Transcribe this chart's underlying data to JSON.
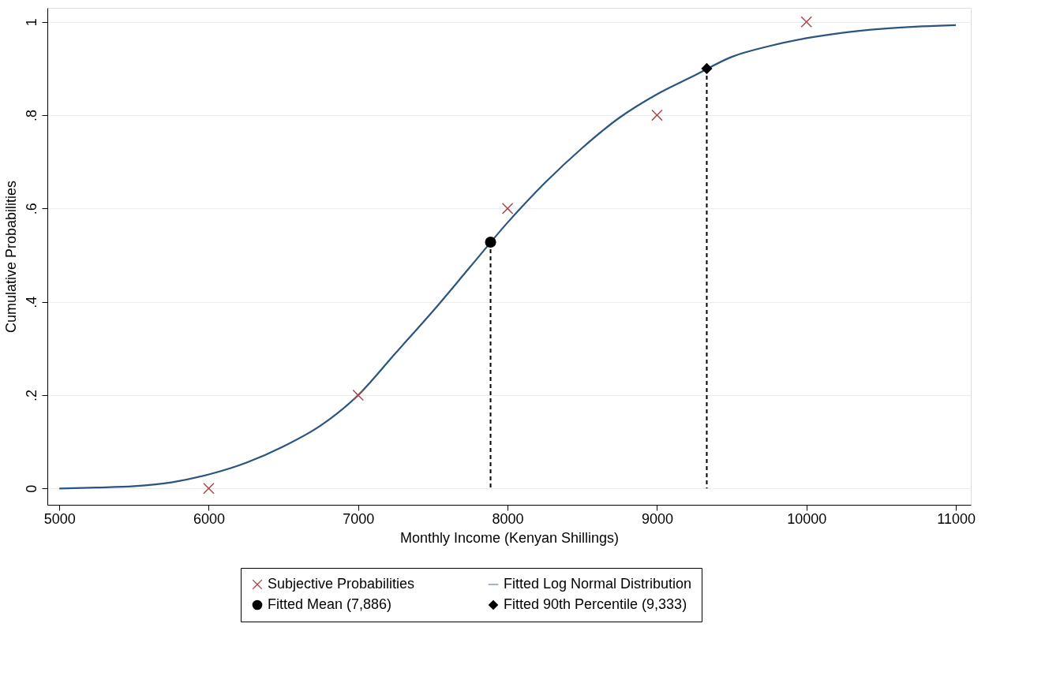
{
  "chart_data": {
    "type": "scatter",
    "xlabel": "Monthly Income (Kenyan Shillings)",
    "ylabel": "Cumulative Probabilities",
    "xlim": [
      4920,
      11100
    ],
    "ylim": [
      -0.035,
      1.03
    ],
    "xticks": [
      5000,
      6000,
      7000,
      8000,
      9000,
      10000,
      11000
    ],
    "yticks": [
      0,
      {
        "value": 0.2,
        "label": ".2"
      },
      {
        "value": 0.4,
        "label": ".4"
      },
      {
        "value": 0.6,
        "label": ".6"
      },
      {
        "value": 0.8,
        "label": ".8"
      },
      1
    ],
    "grid": "y",
    "legend": "bottom",
    "series": [
      {
        "name": "Subjective Probabilities",
        "marker": "cross",
        "color": "#a8474a",
        "x": [
          6000,
          7000,
          8000,
          9000,
          10000
        ],
        "values": [
          0,
          0.2,
          0.6,
          0.8,
          1
        ]
      },
      {
        "name": "Fitted Log Normal Distribution",
        "type": "line",
        "line_style": "solid",
        "color": "#2b5580",
        "x": [
          5000,
          5250,
          5500,
          5750,
          6000,
          6250,
          6500,
          6750,
          7000,
          7250,
          7500,
          7750,
          8000,
          8250,
          8500,
          8750,
          9000,
          9250,
          9500,
          9750,
          10000,
          10250,
          10500,
          10750,
          11000
        ],
        "values": [
          0.0,
          0.002,
          0.005,
          0.013,
          0.03,
          0.055,
          0.09,
          0.135,
          0.2,
          0.29,
          0.38,
          0.475,
          0.57,
          0.655,
          0.73,
          0.795,
          0.845,
          0.885,
          0.925,
          0.948,
          0.965,
          0.977,
          0.985,
          0.99,
          0.993
        ]
      },
      {
        "name": "Fitted Mean (7,886)",
        "type": "lollipop",
        "marker": "circle",
        "line_style": "dashed",
        "color": "#000000",
        "x": [
          7886
        ],
        "values": [
          0.528
        ]
      },
      {
        "name": "Fitted 90th Percentile (9,333)",
        "type": "lollipop",
        "marker": "diamond",
        "line_style": "dashed",
        "color": "#000000",
        "x": [
          9333
        ],
        "values": [
          0.9
        ]
      }
    ]
  }
}
